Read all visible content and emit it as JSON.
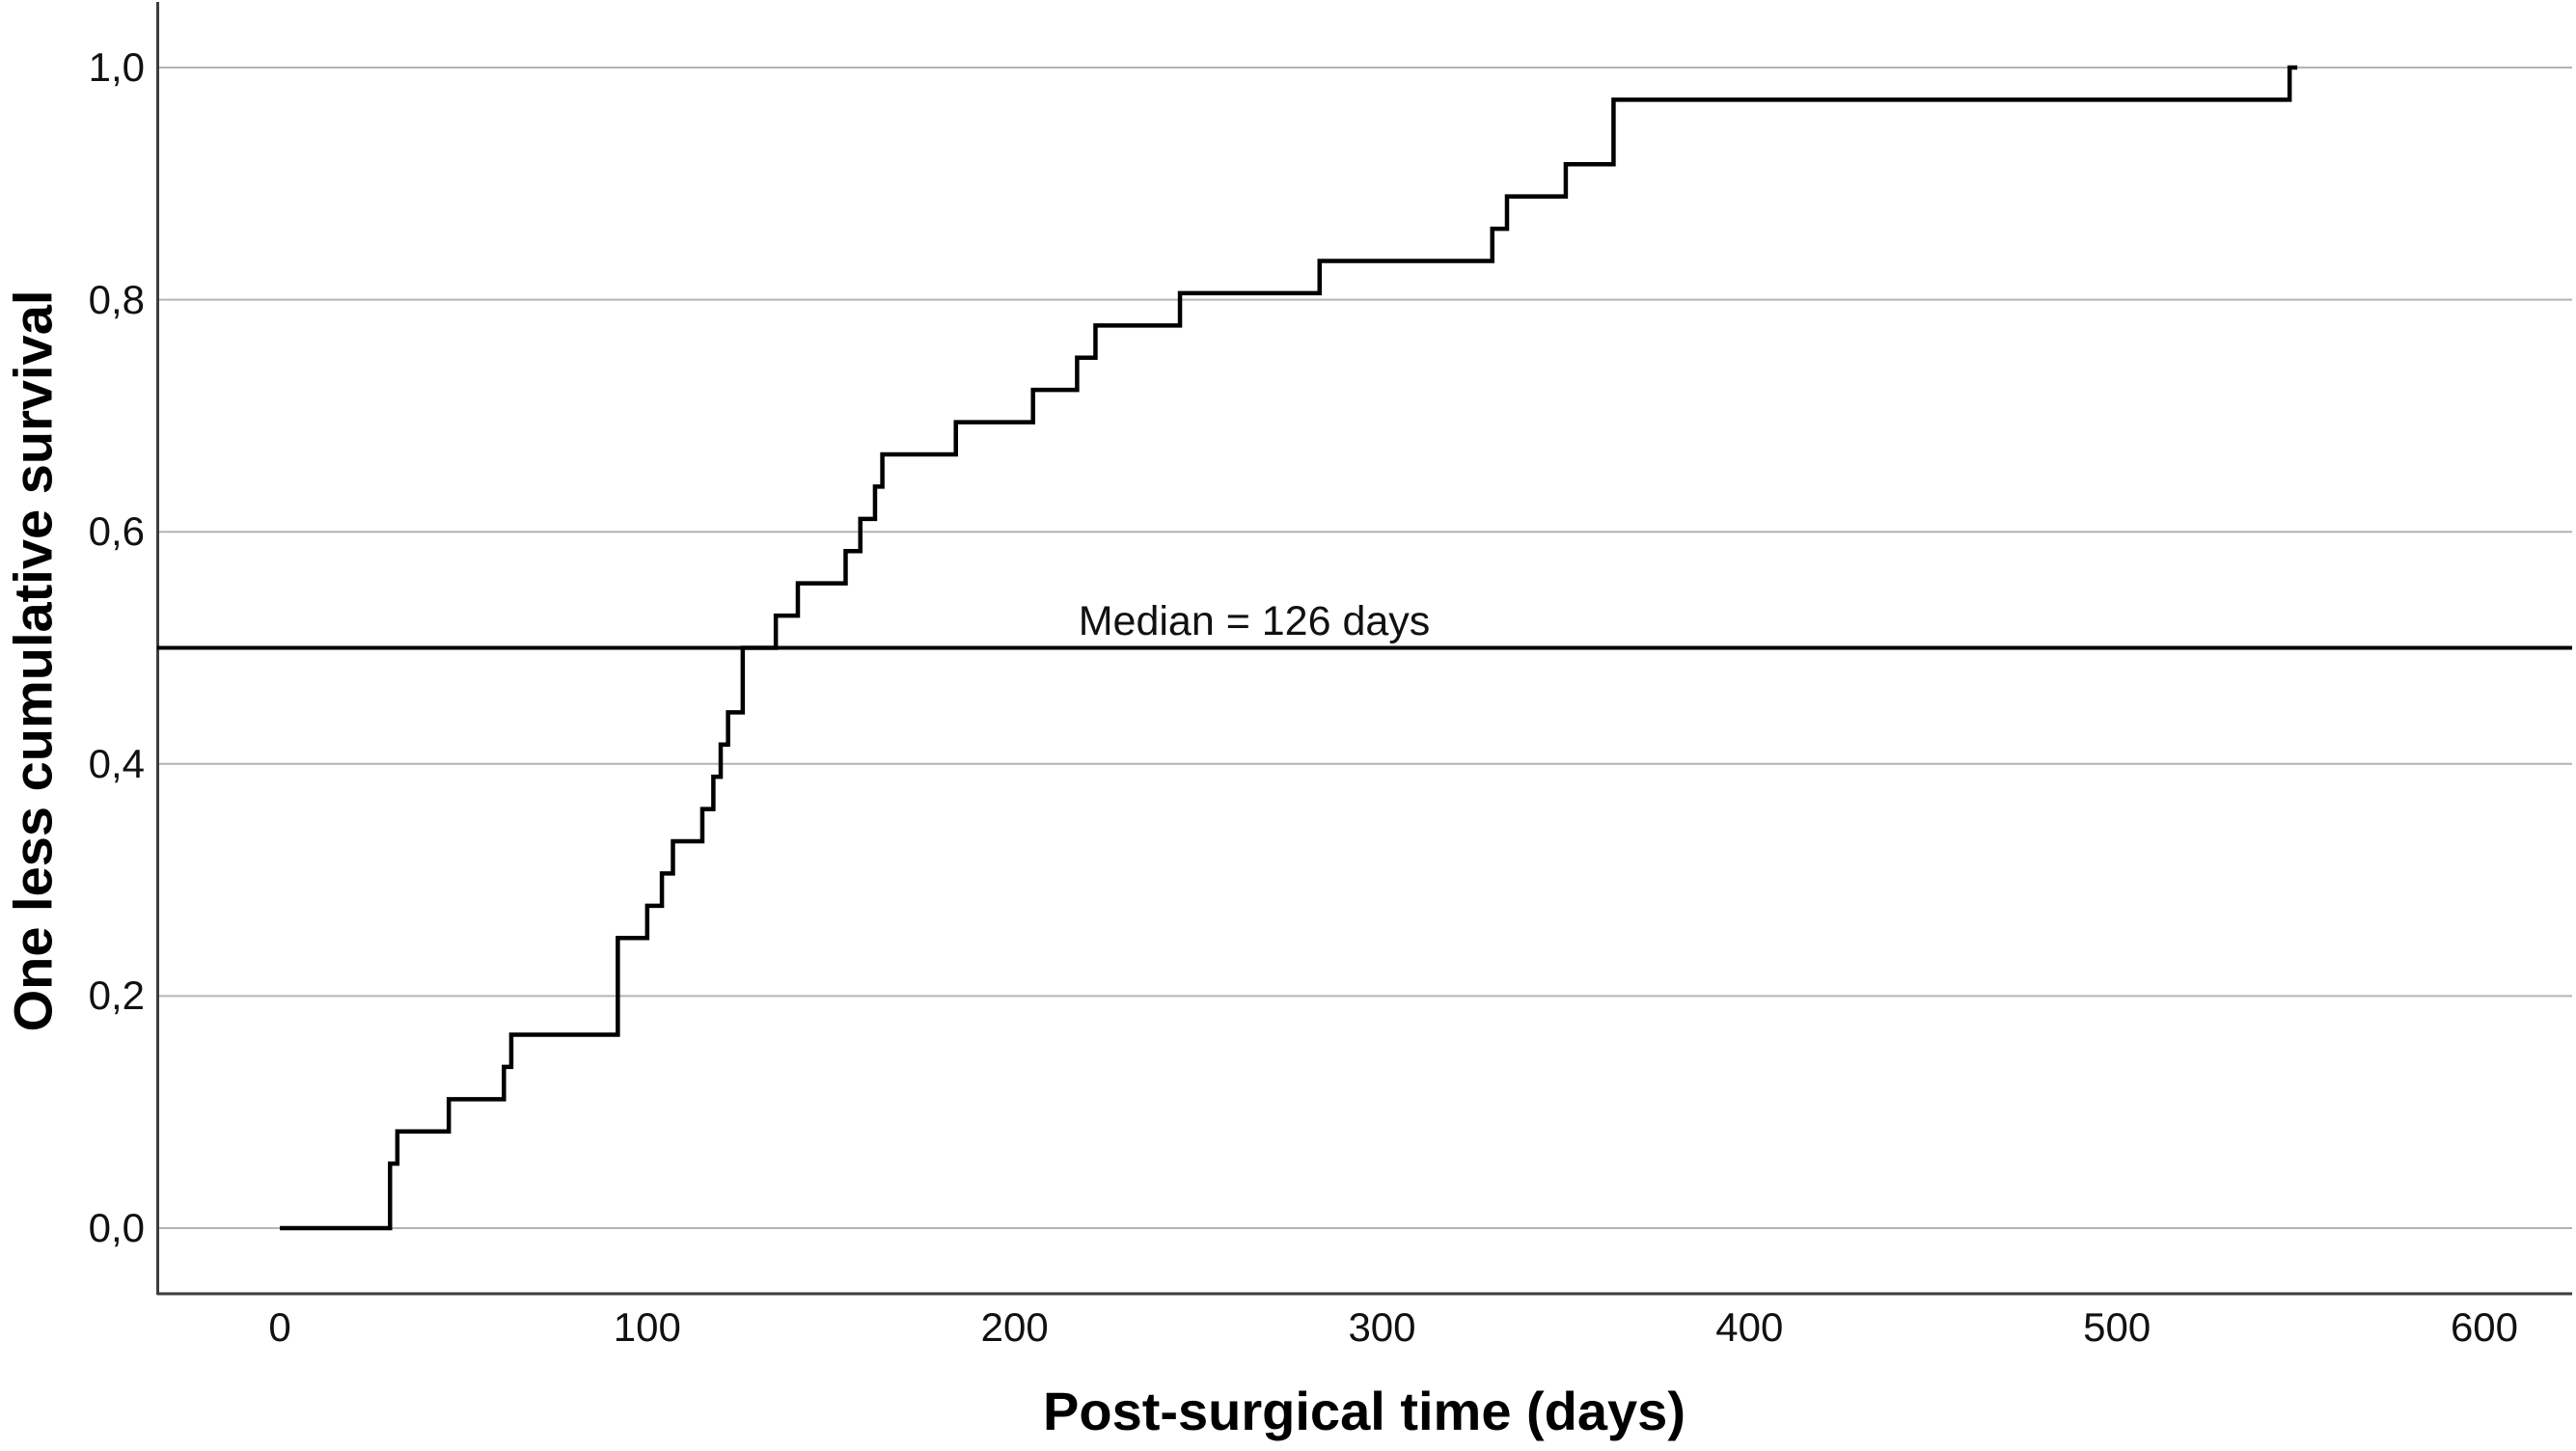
{
  "chart_data": {
    "type": "line",
    "subtype": "step_one_minus_survival",
    "title": "",
    "xlabel": "Post-surgical time (days)",
    "ylabel": "One less cumulative survival",
    "xlim": [
      -33,
      624
    ],
    "ylim": [
      -0.057,
      1.06
    ],
    "x_ticks": [
      "0",
      "100",
      "200",
      "300",
      "400",
      "500",
      "600"
    ],
    "x_tick_values": [
      0,
      100,
      200,
      300,
      400,
      500,
      600
    ],
    "y_ticks": [
      "0,0",
      "0,2",
      "0,4",
      "0,6",
      "0,8",
      "1,0"
    ],
    "y_tick_values": [
      0.0,
      0.2,
      0.4,
      0.6,
      0.8,
      1.0
    ],
    "grid": "horizontal_only",
    "legend": "none",
    "decimal_separator": "comma",
    "n_total": 36,
    "median_days": 126,
    "median_reference_value": 0.5,
    "annotation": "Median = 126 days",
    "curve_color": "#000000",
    "gridline_color": "#b4b4b4",
    "axis_color": "#3d3d3d",
    "curve_start": {
      "t": 0,
      "cumulative": 0
    },
    "events_format": "[time_days, cumulative_events_of_n_total]",
    "events": [
      [
        30,
        2
      ],
      [
        32,
        3
      ],
      [
        46,
        4
      ],
      [
        61,
        5
      ],
      [
        63,
        6
      ],
      [
        92,
        9
      ],
      [
        100,
        10
      ],
      [
        104,
        11
      ],
      [
        107,
        12
      ],
      [
        115,
        13
      ],
      [
        118,
        14
      ],
      [
        120,
        15
      ],
      [
        122,
        16
      ],
      [
        126,
        18
      ],
      [
        135,
        19
      ],
      [
        141,
        20
      ],
      [
        154,
        21
      ],
      [
        158,
        22
      ],
      [
        162,
        23
      ],
      [
        164,
        24
      ],
      [
        184,
        25
      ],
      [
        205,
        26
      ],
      [
        217,
        27
      ],
      [
        222,
        28
      ],
      [
        245,
        29
      ],
      [
        283,
        30
      ],
      [
        330,
        31
      ],
      [
        334,
        32
      ],
      [
        350,
        33
      ],
      [
        363,
        35
      ],
      [
        547,
        36
      ]
    ]
  }
}
